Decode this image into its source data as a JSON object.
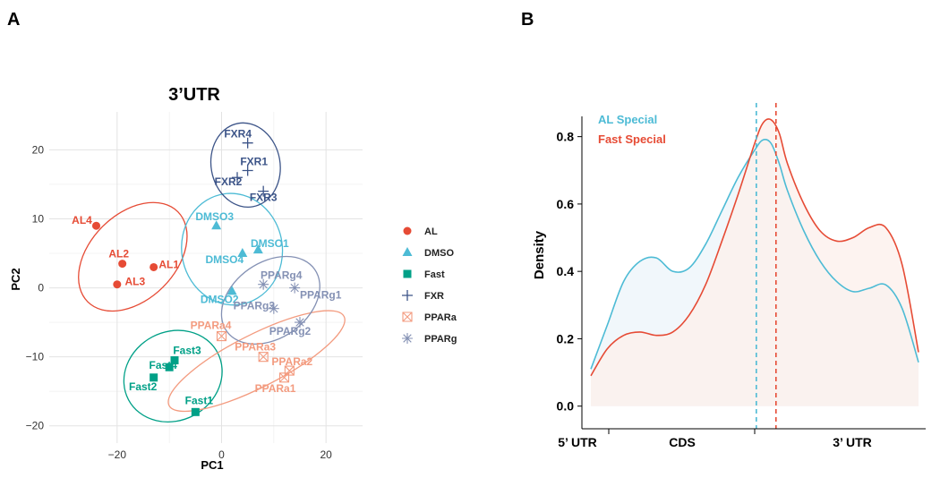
{
  "panels": {
    "a_letter": "A",
    "b_letter": "B"
  },
  "chart_data": [
    {
      "type": "scatter",
      "title": "3’UTR",
      "xlabel": "PC1",
      "ylabel": "PC2",
      "xlim": [
        -33,
        27
      ],
      "ylim": [
        -22.5,
        25.5
      ],
      "x_ticks": [
        -20,
        0,
        20
      ],
      "y_ticks": [
        -20,
        -10,
        0,
        10,
        20
      ],
      "grid": true,
      "legend_position": "right",
      "groups": [
        {
          "name": "AL",
          "color": "#E64B35",
          "shape": "circle",
          "ellipse": {
            "cx": -17,
            "cy": 4.5,
            "rx": 12.2,
            "ry": 6.2,
            "angle": -45
          },
          "points": [
            {
              "label": "AL1",
              "x": -13,
              "y": 3
            },
            {
              "label": "AL2",
              "x": -19,
              "y": 3.5
            },
            {
              "label": "AL3",
              "x": -20,
              "y": 0.5
            },
            {
              "label": "AL4",
              "x": -24,
              "y": 9
            }
          ]
        },
        {
          "name": "DMSO",
          "color": "#4DBBD5",
          "shape": "triangle",
          "ellipse": {
            "cx": 2,
            "cy": 5.6,
            "rx": 10.7,
            "ry": 7.3,
            "angle": 82
          },
          "points": [
            {
              "label": "DMSO1",
              "x": 7,
              "y": 5.5
            },
            {
              "label": "DMSO2",
              "x": 2,
              "y": -0.5
            },
            {
              "label": "DMSO3",
              "x": -1,
              "y": 9
            },
            {
              "label": "DMSO4",
              "x": 4,
              "y": 5
            }
          ]
        },
        {
          "name": "Fast",
          "color": "#00A087",
          "shape": "square",
          "ellipse": {
            "cx": -9.3,
            "cy": -12.8,
            "rx": 8.5,
            "ry": 7.3,
            "angle": 62
          },
          "points": [
            {
              "label": "Fast1",
              "x": -5,
              "y": -18
            },
            {
              "label": "Fast2",
              "x": -13,
              "y": -13
            },
            {
              "label": "Fast3",
              "x": -9,
              "y": -10.5
            },
            {
              "label": "Fast4",
              "x": -10,
              "y": -11.5
            }
          ]
        },
        {
          "name": "FXR",
          "color": "#3C5488",
          "shape": "plus",
          "ellipse": {
            "cx": 4.6,
            "cy": 17.8,
            "rx": 8.1,
            "ry": 5,
            "angle": 80
          },
          "points": [
            {
              "label": "FXR1",
              "x": 5,
              "y": 17
            },
            {
              "label": "FXR2",
              "x": 3,
              "y": 16
            },
            {
              "label": "FXR3",
              "x": 8,
              "y": 14
            },
            {
              "label": "FXR4",
              "x": 5,
              "y": 21
            }
          ]
        },
        {
          "name": "PPARa",
          "color": "#F39B7F",
          "shape": "square-x",
          "ellipse": {
            "cx": 6.7,
            "cy": -10.6,
            "rx": 18.8,
            "ry": 3.8,
            "angle": -27
          },
          "points": [
            {
              "label": "PPARa1",
              "x": 12,
              "y": -13
            },
            {
              "label": "PPARa2",
              "x": 13,
              "y": -12
            },
            {
              "label": "PPARa3",
              "x": 8,
              "y": -10
            },
            {
              "label": "PPARa4",
              "x": 0,
              "y": -7
            }
          ]
        },
        {
          "name": "PPARg",
          "color": "#8491B4",
          "shape": "asterisk",
          "ellipse": {
            "cx": 9.4,
            "cy": -1.8,
            "rx": 10.3,
            "ry": 5.5,
            "angle": -35
          },
          "points": [
            {
              "label": "PPARg1",
              "x": 14,
              "y": 0
            },
            {
              "label": "PPARg2",
              "x": 15,
              "y": -5
            },
            {
              "label": "PPARg3",
              "x": 10,
              "y": -3
            },
            {
              "label": "PPARg4",
              "x": 8,
              "y": 0.5
            }
          ]
        }
      ]
    },
    {
      "type": "area",
      "title": "",
      "xlabel": "",
      "ylabel": "Density",
      "xlim": [
        0,
        1
      ],
      "ylim": [
        -0.03,
        0.9
      ],
      "y_ticks": [
        0.0,
        0.2,
        0.4,
        0.6,
        0.8
      ],
      "x_region_labels": [
        "5’ UTR",
        "CDS",
        "3’ UTR"
      ],
      "grid": false,
      "legend_position": "top-left",
      "x": [
        0,
        0.05,
        0.1,
        0.15,
        0.2,
        0.25,
        0.3,
        0.35,
        0.4,
        0.45,
        0.5,
        0.525,
        0.55,
        0.575,
        0.6,
        0.65,
        0.7,
        0.75,
        0.8,
        0.85,
        0.9,
        0.95,
        1
      ],
      "series": [
        {
          "name": "AL Special",
          "color": "#4DBBD5",
          "values": [
            0.11,
            0.24,
            0.37,
            0.43,
            0.44,
            0.4,
            0.41,
            0.48,
            0.58,
            0.68,
            0.76,
            0.79,
            0.78,
            0.72,
            0.64,
            0.52,
            0.43,
            0.37,
            0.34,
            0.35,
            0.36,
            0.29,
            0.13
          ]
        },
        {
          "name": "Fast Special",
          "color": "#E64B35",
          "values": [
            0.09,
            0.17,
            0.21,
            0.22,
            0.21,
            0.22,
            0.27,
            0.36,
            0.49,
            0.63,
            0.78,
            0.84,
            0.85,
            0.81,
            0.72,
            0.6,
            0.52,
            0.49,
            0.5,
            0.53,
            0.53,
            0.42,
            0.16
          ]
        }
      ],
      "vlines": [
        {
          "series": "AL Special",
          "x": 0.505,
          "style": "dashed"
        },
        {
          "series": "Fast Special",
          "x": 0.565,
          "style": "dashed"
        }
      ]
    }
  ]
}
